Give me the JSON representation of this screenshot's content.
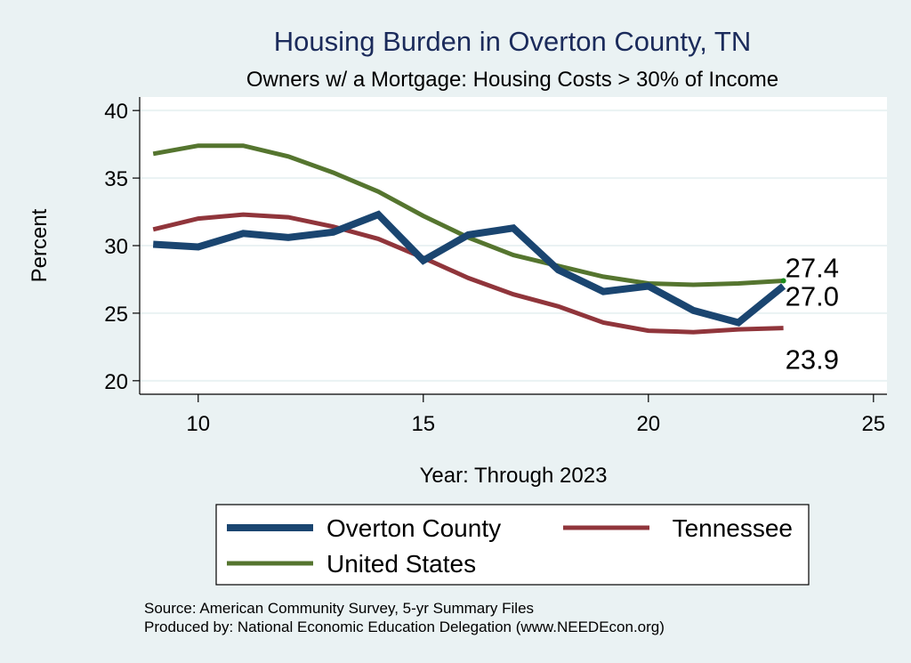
{
  "chart_data": {
    "type": "line",
    "title": "Housing Burden in Overton County, TN",
    "subtitle": "Owners w/ a Mortgage: Housing Costs > 30% of Income",
    "xlabel": "Year: Through 2023",
    "ylabel": "Percent",
    "xlim": [
      8.7,
      25.3
    ],
    "ylim": [
      19.0,
      41.0
    ],
    "xticks": [
      10,
      15,
      20,
      25
    ],
    "yticks": [
      20,
      25,
      30,
      35,
      40
    ],
    "grid": true,
    "x": [
      9,
      10,
      11,
      12,
      13,
      14,
      15,
      16,
      17,
      18,
      19,
      20,
      21,
      22,
      23
    ],
    "series": [
      {
        "name": "Overton County",
        "color": "#1A4570",
        "values": [
          30.1,
          29.9,
          30.9,
          30.6,
          31.0,
          32.3,
          28.9,
          30.8,
          31.3,
          28.2,
          26.6,
          27.0,
          25.2,
          24.3,
          27.0
        ],
        "end_label": "27.0"
      },
      {
        "name": "Tennessee",
        "color": "#90353B",
        "values": [
          31.2,
          32.0,
          32.3,
          32.1,
          31.4,
          30.5,
          29.1,
          27.6,
          26.4,
          25.5,
          24.3,
          23.7,
          23.6,
          23.8,
          23.9
        ],
        "end_label": "23.9"
      },
      {
        "name": "United States",
        "color": "#55752F",
        "values": [
          36.8,
          37.4,
          37.4,
          36.6,
          35.4,
          34.0,
          32.2,
          30.6,
          29.3,
          28.5,
          27.7,
          27.2,
          27.1,
          27.2,
          27.4
        ],
        "end_label": "27.4"
      }
    ],
    "legend": {
      "position": "bottom",
      "entries": [
        "Overton County",
        "Tennessee",
        "United States"
      ]
    },
    "notes": [
      "Source: American Community Survey, 5-yr Summary Files",
      "Produced by: National Economic Education Delegation (www.NEEDEcon.org)"
    ]
  }
}
